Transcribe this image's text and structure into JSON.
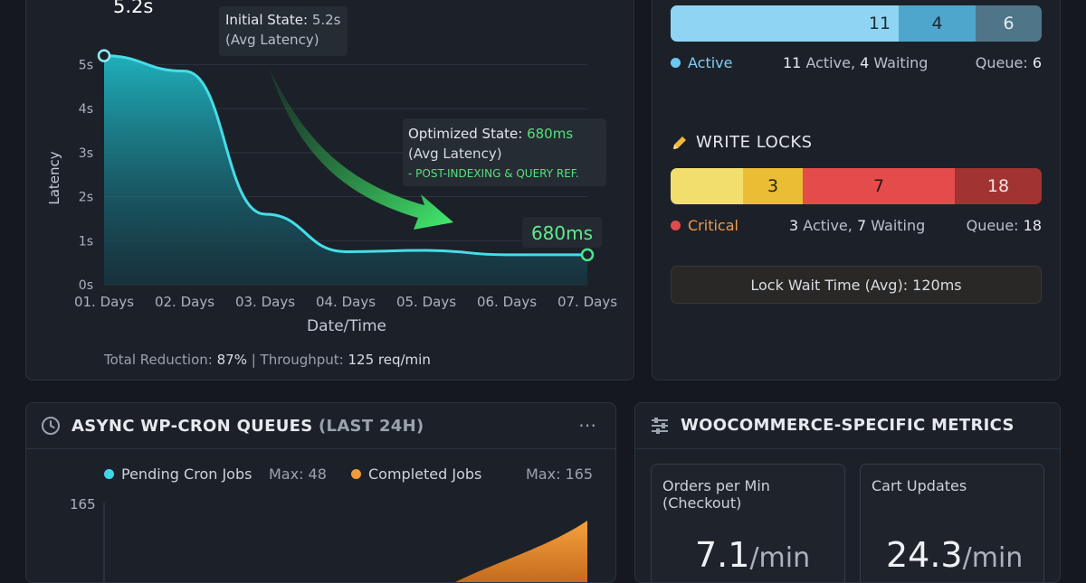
{
  "latency": {
    "chart_data": {
      "type": "area",
      "title": "",
      "xlabel": "Date/Time",
      "ylabel": "Latency",
      "categories": [
        "01. Days",
        "02. Days",
        "03. Days",
        "04. Days",
        "05. Days",
        "06. Days",
        "07. Days"
      ],
      "series": [
        {
          "values": [
            5.2,
            4.85,
            1.6,
            0.75,
            0.78,
            0.68,
            0.68
          ]
        }
      ],
      "y_ticks": [
        "0s",
        "1s",
        "2s",
        "3s",
        "4s",
        "5s"
      ],
      "ylim": [
        0,
        5.5
      ],
      "grid": true,
      "start_label": "5.2s",
      "end_label": "680ms"
    },
    "annotations": {
      "initial_title": "Initial State: ",
      "initial_value": "5.2s",
      "initial_sub": "(Avg Latency)",
      "optimized_title": "Optimized State: ",
      "optimized_value": "680ms",
      "optimized_sub": "(Avg Latency)",
      "optimized_note": "- POST-INDEXING & QUERY REF."
    },
    "footer": {
      "reduction_label": "Total Reduction: ",
      "reduction_value": "87%",
      "sep": " | ",
      "throughput_label": "Throughput: ",
      "throughput_value": "125 req/min"
    },
    "colors": {
      "line": "#46dde8",
      "area_top": "#1aa9b5",
      "arrow": "#3ee86a"
    }
  },
  "read_locks": {
    "segments": [
      "11",
      "4",
      "6"
    ],
    "legend": "Active",
    "active_count": "11",
    "active_text": " Active, ",
    "waiting_count": "4",
    "waiting_text": " Waiting",
    "queue_label": "Queue: ",
    "queue_value": "6",
    "colors": {
      "active": "#8fd5f3",
      "waiting": "#4fa6cc",
      "queue": "#4f7588"
    }
  },
  "write_locks": {
    "title": "WRITE LOCKS",
    "icon": "pencil-icon",
    "segments": [
      "3",
      "7",
      "18"
    ],
    "legend": "Critical",
    "active_count": "3",
    "active_text": " Active, ",
    "waiting_count": "7",
    "waiting_text": " Waiting",
    "queue_label": "Queue: ",
    "queue_value": "18",
    "colors": {
      "light": "#f2de6c",
      "active": "#ebbd35",
      "waiting": "#e44b4b",
      "queue": "#a13333"
    }
  },
  "lock_wait": {
    "text": "Lock Wait Time (Avg): 120ms"
  },
  "cron": {
    "title": "ASYNC WP-CRON QUEUES ",
    "title_suffix": "(LAST 24H)",
    "icon": "clock-icon",
    "more_icon": "more-icon",
    "legend_pending": "Pending Cron Jobs",
    "pending_max": "Max: 48",
    "legend_completed": "Completed Jobs",
    "completed_max": "Max: 165",
    "y_top": "165",
    "colors": {
      "pending": "#3fd6ea",
      "completed": "#f19a38"
    }
  },
  "woo": {
    "title": "WOOCOMMERCE-SPECIFIC METRICS",
    "icon": "sliders-icon",
    "cards": [
      {
        "label": "Orders per Min (Checkout)",
        "value": "7.1",
        "unit": "/min"
      },
      {
        "label": "Cart Updates",
        "value": "24.3",
        "unit": "/min"
      }
    ]
  }
}
